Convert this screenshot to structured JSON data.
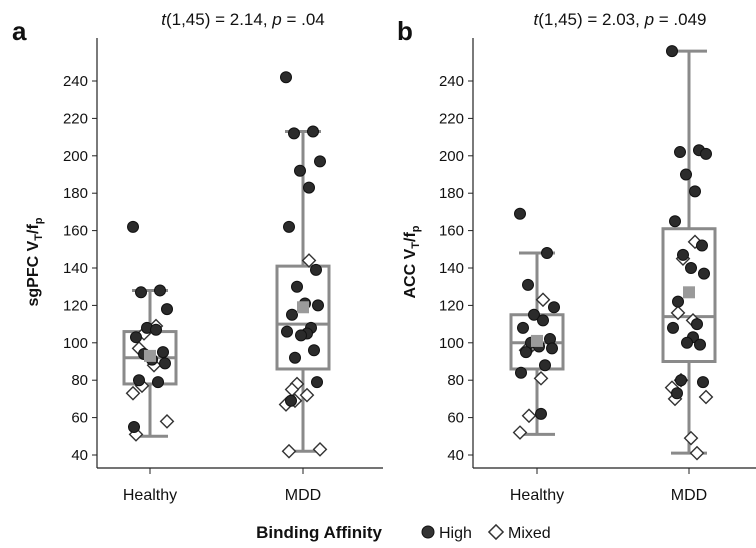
{
  "legend": {
    "title": "Binding Affinity",
    "high": "High",
    "mixed": "Mixed"
  },
  "chart_data": [
    {
      "type": "box",
      "panel": "a",
      "stat_parts": [
        "t",
        "(1,45) = 2.14, ",
        "p",
        " = .04"
      ],
      "ylabel_main": "sgPFC V",
      "ylabel_sub1": "T",
      "ylabel_mid": "/f",
      "ylabel_sub2": "p",
      "ylim": [
        40,
        250
      ],
      "yticks": [
        40,
        60,
        80,
        100,
        120,
        140,
        160,
        180,
        200,
        220,
        240
      ],
      "categories": [
        "Healthy",
        "MDD"
      ],
      "groups": [
        {
          "name": "Healthy",
          "box": {
            "min": 50,
            "q1": 78,
            "median": 92,
            "q3": 106,
            "max": 128
          },
          "mean": 93,
          "high": [
            162,
            128,
            127,
            118,
            108,
            107,
            103,
            95,
            94,
            91,
            89,
            80,
            79,
            55
          ],
          "mixed": [
            109,
            105,
            97,
            88,
            77,
            73,
            58,
            51
          ]
        },
        {
          "name": "MDD",
          "box": {
            "min": 42,
            "q1": 86,
            "median": 110,
            "q3": 141,
            "max": 213
          },
          "mean": 119,
          "high": [
            242,
            213,
            212,
            197,
            192,
            183,
            162,
            139,
            130,
            121,
            120,
            115,
            108,
            106,
            105,
            104,
            96,
            92,
            79,
            69
          ],
          "mixed": [
            144,
            78,
            75,
            72,
            69,
            67,
            43,
            42
          ]
        }
      ]
    },
    {
      "type": "box",
      "panel": "b",
      "stat_parts": [
        "t",
        "(1,45) = 2.03, ",
        "p",
        " = .049"
      ],
      "ylabel_main": "ACC V",
      "ylabel_sub1": "T",
      "ylabel_mid": "/f",
      "ylabel_sub2": "p",
      "ylim": [
        40,
        258
      ],
      "yticks": [
        40,
        60,
        80,
        100,
        120,
        140,
        160,
        180,
        200,
        220,
        240
      ],
      "categories": [
        "Healthy",
        "MDD"
      ],
      "groups": [
        {
          "name": "Healthy",
          "box": {
            "min": 51,
            "q1": 86,
            "median": 100,
            "q3": 115,
            "max": 148
          },
          "mean": 101,
          "high": [
            169,
            148,
            131,
            119,
            115,
            112,
            108,
            102,
            100,
            98,
            97,
            95,
            88,
            84,
            62
          ],
          "mixed": [
            123,
            98,
            96,
            81,
            61,
            52
          ]
        },
        {
          "name": "MDD",
          "box": {
            "min": 41,
            "q1": 90,
            "median": 114,
            "q3": 161,
            "max": 256
          },
          "mean": 127,
          "high": [
            256,
            203,
            202,
            201,
            190,
            181,
            165,
            152,
            147,
            140,
            137,
            122,
            110,
            108,
            103,
            100,
            99,
            80,
            79,
            73
          ],
          "mixed": [
            154,
            145,
            116,
            112,
            80,
            76,
            71,
            70,
            49,
            41
          ]
        }
      ]
    }
  ]
}
